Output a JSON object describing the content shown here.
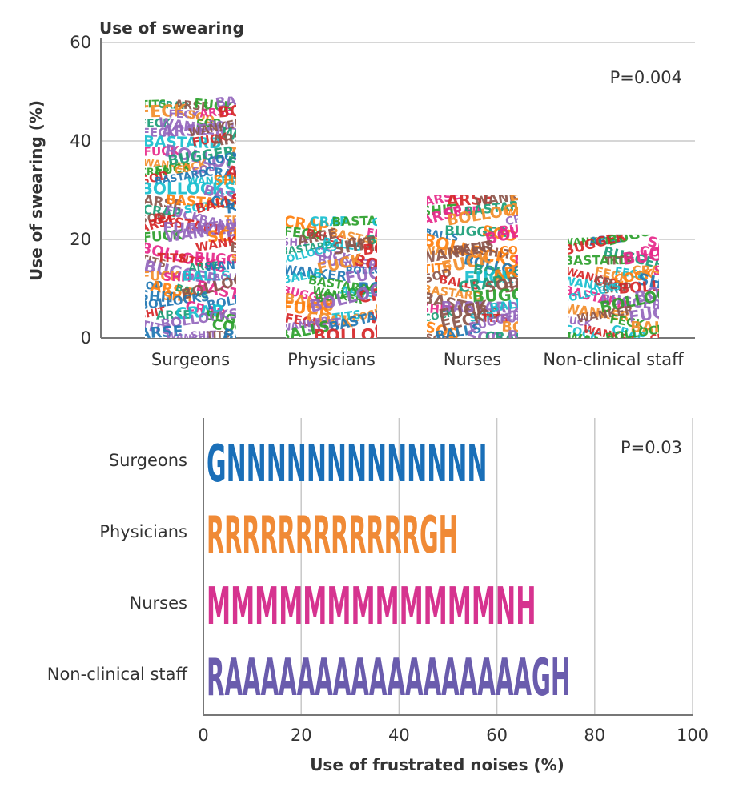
{
  "chart_data": [
    {
      "type": "bar",
      "title": "Use of swearing",
      "ylabel": "Use of swearing (%)",
      "xlabel": "",
      "ylim": [
        0,
        60
      ],
      "yticks": [
        "0",
        "20",
        "40",
        "60"
      ],
      "categories": [
        "Surgeons",
        "Physicians",
        "Nurses",
        "Non-clinical staff"
      ],
      "values": [
        49,
        25,
        29,
        21
      ],
      "annotation": "P=0.004",
      "grid": true,
      "words": [
        "FUCK",
        "BOLLOCKS",
        "BALLS",
        "WANKER",
        "SHIT",
        "ARSE",
        "CRAP",
        "TITS",
        "SOD",
        "BUGGER",
        "COCK",
        "BASTARD",
        "FECK"
      ],
      "colors": [
        "#1f77b4",
        "#f28e2b",
        "#2ca02c",
        "#d62728",
        "#9467bd",
        "#e7298a",
        "#17becf",
        "#8c564b",
        "#1b9e77",
        "#ff7f0e"
      ]
    },
    {
      "type": "bar",
      "orientation": "horizontal",
      "title": "",
      "xlabel": "Use of frustrated noises (%)",
      "ylabel": "",
      "xlim": [
        0,
        100
      ],
      "xticks": [
        "0",
        "20",
        "40",
        "60",
        "80",
        "100"
      ],
      "categories": [
        "Surgeons",
        "Physicians",
        "Nurses",
        "Non-clinical staff"
      ],
      "values": [
        58,
        52,
        68,
        75
      ],
      "noises": [
        "GNNNNNNNNNNNNN",
        "RRRRRRRRRRRRGH",
        "MMMMMMMMMMMMNH",
        "RAAAAAAAAAAAAAAAAAGH"
      ],
      "colors": [
        "#1a6fb8",
        "#f08a36",
        "#d6338f",
        "#6a5cad"
      ],
      "annotation": "P=0.03",
      "grid": true
    }
  ]
}
